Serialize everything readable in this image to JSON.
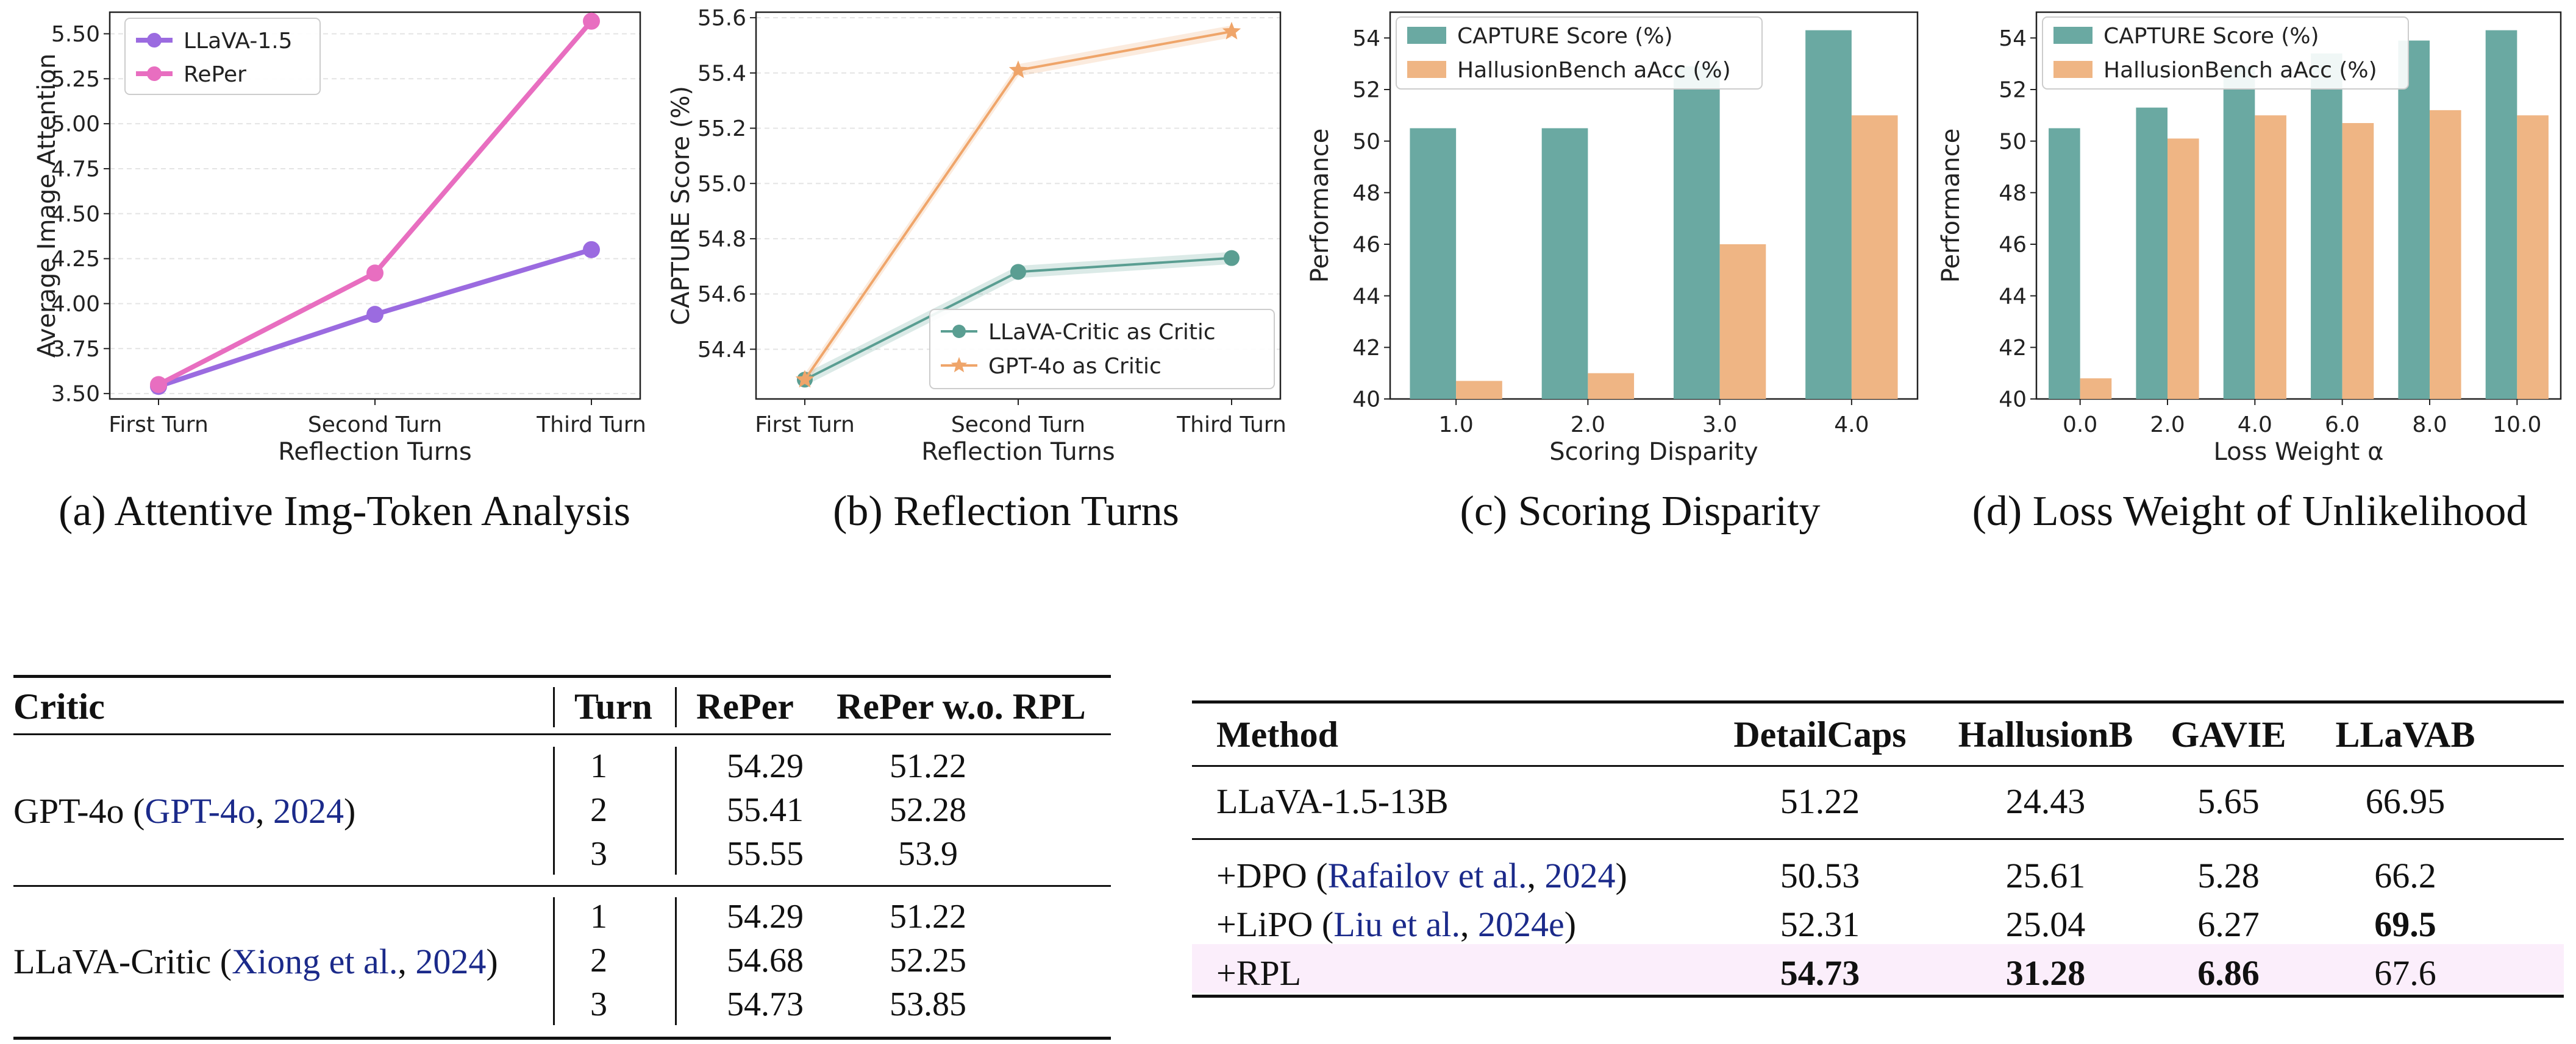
{
  "chart_data": [
    {
      "type": "line",
      "caption": "(a) Attentive Img-Token Analysis",
      "xlabel": "Reflection Turns",
      "ylabel": "Average Image Attention",
      "categories": [
        "First Turn",
        "Second Turn",
        "Third Turn"
      ],
      "ylim": [
        3.47,
        5.62
      ],
      "yticks": [
        "3.50",
        "3.75",
        "4.00",
        "4.25",
        "4.50",
        "4.75",
        "5.00",
        "5.25",
        "5.50"
      ],
      "grid": true,
      "legend": "top-left",
      "series": [
        {
          "name": "LLaVA-1.5",
          "values": [
            3.54,
            3.94,
            4.3
          ],
          "color": "#9b6be0",
          "marker": "circle"
        },
        {
          "name": "RePer",
          "values": [
            3.55,
            4.17,
            5.57
          ],
          "color": "#e86ec0",
          "marker": "circle"
        }
      ]
    },
    {
      "type": "line",
      "caption": "(b) Reflection Turns",
      "xlabel": "Reflection Turns",
      "ylabel": "CAPTURE Score (%)",
      "categories": [
        "First Turn",
        "Second Turn",
        "Third Turn"
      ],
      "ylim": [
        54.22,
        55.62
      ],
      "yticks": [
        "54.4",
        "54.6",
        "54.8",
        "55.0",
        "55.2",
        "55.4",
        "55.6"
      ],
      "grid": true,
      "legend": "bottom-right",
      "series": [
        {
          "name": "LLaVA-Critic as Critic",
          "values": [
            54.29,
            54.68,
            54.73
          ],
          "color": "#5a9e92",
          "marker": "circle"
        },
        {
          "name": "GPT-4o as Critic",
          "values": [
            54.29,
            55.41,
            55.55
          ],
          "color": "#efa56a",
          "marker": "star"
        }
      ]
    },
    {
      "type": "bar",
      "caption": "(c) Scoring Disparity",
      "xlabel": "Scoring Disparity",
      "ylabel": "Performance",
      "categories": [
        "1.0",
        "2.0",
        "3.0",
        "4.0"
      ],
      "ylim": [
        40,
        55
      ],
      "yticks": [
        "40",
        "42",
        "44",
        "46",
        "48",
        "50",
        "52",
        "54"
      ],
      "legend": "top-left",
      "series": [
        {
          "name": "CAPTURE Score (%)",
          "values": [
            50.5,
            50.5,
            52.9,
            54.3
          ],
          "color": "#6aa9a2"
        },
        {
          "name": "HallusionBench aAcc (%)",
          "values": [
            40.7,
            41.0,
            46.0,
            51.0
          ],
          "color": "#efb584"
        }
      ]
    },
    {
      "type": "bar",
      "caption": "(d) Loss Weight of Unlikelihood",
      "xlabel": "Loss Weight α",
      "ylabel": "Performance",
      "categories": [
        "0.0",
        "2.0",
        "4.0",
        "6.0",
        "8.0",
        "10.0"
      ],
      "ylim": [
        40,
        55
      ],
      "yticks": [
        "40",
        "42",
        "44",
        "46",
        "48",
        "50",
        "52",
        "54"
      ],
      "legend": "top-left",
      "series": [
        {
          "name": "CAPTURE Score (%)",
          "values": [
            50.5,
            51.3,
            52.9,
            53.4,
            53.9,
            54.3
          ],
          "color": "#6aa9a2"
        },
        {
          "name": "HallusionBench aAcc (%)",
          "values": [
            40.8,
            50.1,
            51.0,
            50.7,
            51.2,
            51.0
          ],
          "color": "#efb584"
        }
      ]
    }
  ],
  "table_critic": {
    "headers": [
      "Critic",
      "Turn",
      "RePer",
      "RePer w.o. RPL"
    ],
    "groups": [
      {
        "critic": "GPT-4o",
        "cite": "GPT-4o",
        "year": "2024",
        "rows": [
          [
            "1",
            "54.29",
            "51.22"
          ],
          [
            "2",
            "55.41",
            "52.28"
          ],
          [
            "3",
            "55.55",
            "53.9"
          ]
        ]
      },
      {
        "critic": "LLaVA-Critic",
        "cite": "Xiong et al.",
        "year": "2024",
        "rows": [
          [
            "1",
            "54.29",
            "51.22"
          ],
          [
            "2",
            "54.68",
            "52.25"
          ],
          [
            "3",
            "54.73",
            "53.85"
          ]
        ]
      }
    ]
  },
  "table_method": {
    "headers": [
      "Method",
      "DetailCaps",
      "HallusionB",
      "GAVIE",
      "LLaVAB"
    ],
    "baseline": [
      "LLaVA-1.5-13B",
      "51.22",
      "24.43",
      "5.65",
      "66.95"
    ],
    "rows": [
      {
        "prefix": "+DPO",
        "cite": "Rafailov et al.",
        "year": "2024",
        "values": [
          "50.53",
          "25.61",
          "5.28",
          "66.2"
        ],
        "bold": [
          false,
          false,
          false,
          false
        ]
      },
      {
        "prefix": "+LiPO",
        "cite": "Liu et al.",
        "year": "2024e",
        "values": [
          "52.31",
          "25.04",
          "6.27",
          "69.5"
        ],
        "bold": [
          false,
          false,
          false,
          true
        ]
      },
      {
        "prefix": "+RPL",
        "cite": "",
        "year": "",
        "values": [
          "54.73",
          "31.28",
          "6.86",
          "67.6"
        ],
        "bold": [
          true,
          true,
          true,
          false
        ],
        "highlight": "#fbeefb"
      }
    ]
  }
}
